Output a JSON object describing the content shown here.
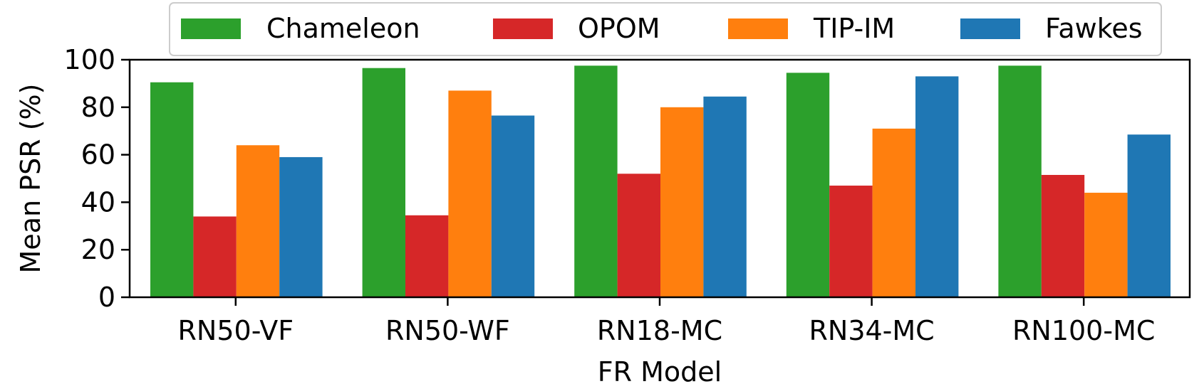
{
  "chart_data": {
    "type": "bar",
    "title": "",
    "xlabel": "FR Model",
    "ylabel": "Mean PSR (%)",
    "ylim": [
      0,
      100
    ],
    "yticks": [
      0,
      20,
      40,
      60,
      80,
      100
    ],
    "categories": [
      "RN50-VF",
      "RN50-WF",
      "RN18-MC",
      "RN34-MC",
      "RN100-MC"
    ],
    "series": [
      {
        "name": "Chameleon",
        "color": "#2ca02c",
        "values": [
          90.5,
          96.5,
          97.5,
          94.5,
          97.5
        ]
      },
      {
        "name": "OPOM",
        "color": "#d62728",
        "values": [
          34,
          34.5,
          52,
          47,
          51.5
        ]
      },
      {
        "name": "TIP-IM",
        "color": "#ff7f0e",
        "values": [
          64,
          87,
          80,
          71,
          44
        ]
      },
      {
        "name": "Fawkes",
        "color": "#1f77b4",
        "values": [
          59,
          76.5,
          84.5,
          93,
          68.5
        ]
      }
    ],
    "legend_position": "top-center",
    "grid": false
  }
}
